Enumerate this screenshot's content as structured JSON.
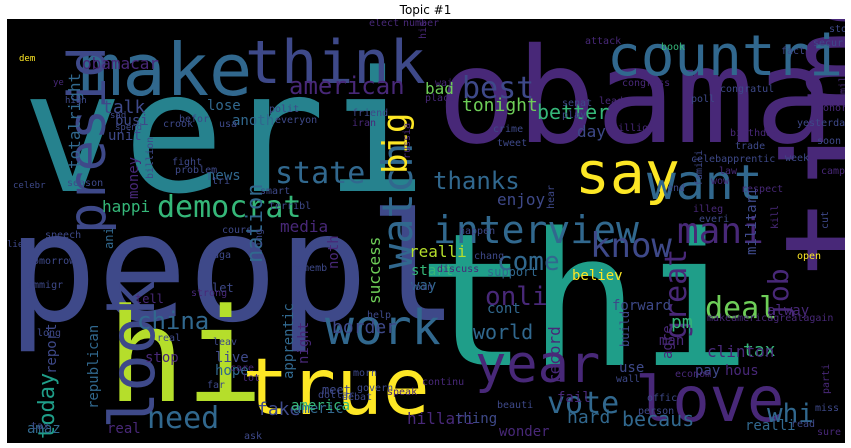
{
  "title": "Topic #1",
  "palette": {
    "dark_purple": "#440154",
    "purple": "#482878",
    "indigo": "#3e4989",
    "blue": "#31688e",
    "teal": "#26828e",
    "green_teal": "#1f9e89",
    "green": "#35b779",
    "light_green": "#6ece58",
    "yellow_green": "#b5de2b",
    "yellow": "#fde725"
  },
  "words": [
    "veri",
    "obama",
    "peopl",
    "thi",
    "hi",
    "time",
    "make",
    "think",
    "countri",
    "say",
    "true",
    "love",
    "want",
    "presid",
    "look",
    "work",
    "year",
    "interview",
    "mani",
    "democrat",
    "know",
    "american",
    "watch",
    "big",
    "best",
    "state",
    "vote",
    "china",
    "job",
    "deal",
    "onli",
    "great",
    "come",
    "need",
    "thanks",
    "today",
    "obamacar",
    "right",
    "total",
    "talk",
    "bad",
    "tonight",
    "better",
    "day",
    "lose",
    "enjoy",
    "nation",
    "media",
    "happi",
    "news",
    "money",
    "border",
    "realli",
    "start",
    "way",
    "success",
    "noth",
    "world",
    "record",
    "cont",
    "pm",
    "tax",
    "alway",
    "whi",
    "fake",
    "americ",
    "hillari",
    "becaus",
    "hard",
    "clinton",
    "republican",
    "apprentic",
    "report",
    "hope",
    "live",
    "stop",
    "night",
    "america",
    "thing",
    "wonder",
    "fail",
    "use",
    "pay",
    "hous",
    "man",
    "forward",
    "agre",
    "believ",
    "support",
    "busi",
    "unit",
    "anoth",
    "realli",
    "meet",
    "amaz",
    "real",
    "tell",
    "let",
    "ani",
    "tomorrow",
    "immigr",
    "long",
    "lie",
    "celebr",
    "sad",
    "spend",
    "high",
    "ye",
    "dem",
    "befor",
    "crook",
    "usa",
    "fight",
    "tri",
    "everyon",
    "polit",
    "friend",
    "iran",
    "russia",
    "elect",
    "number",
    "histori",
    "wait",
    "place",
    "attack",
    "crime",
    "senat",
    "play",
    "tweet",
    "poll",
    "congratul",
    "leader",
    "secur",
    "stori",
    "fact",
    "book",
    "week",
    "trade",
    "celebapprentic",
    "law",
    "wow",
    "respect",
    "campaign",
    "cut",
    "everi",
    "open",
    "kill",
    "militari",
    "build",
    "discuss",
    "chang",
    "join",
    "happen",
    "rememb",
    "help",
    "strong",
    "maga",
    "bring",
    "cours",
    "speech",
    "season",
    "problem",
    "smart",
    "terribl",
    "billion",
    "leav",
    "morn",
    "continu",
    "econom",
    "person",
    "wall",
    "offic",
    "govern",
    "speak",
    "lot",
    "care",
    "dollar",
    "far",
    "debat",
    "ask",
    "beauti",
    "hear",
    "birthday",
    "yesterday",
    "soon",
    "million",
    "congress",
    "end",
    "famili",
    "illeg",
    "honor",
    "mile",
    "miss",
    "read",
    "sure",
    "parti",
    "makeamericagreatagain",
    "tax",
    "real",
    "win"
  ]
}
